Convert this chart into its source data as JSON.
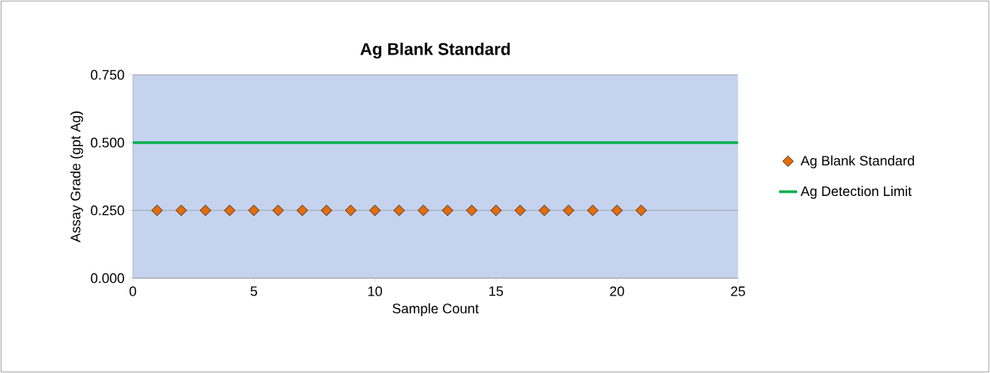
{
  "chart_data": {
    "type": "scatter",
    "title": "Ag Blank Standard",
    "xlabel": "Sample Count",
    "ylabel": "Assay Grade (gpt Ag)",
    "xlim": [
      0,
      25
    ],
    "xticks": [
      0,
      5,
      10,
      15,
      20,
      25
    ],
    "ylim": [
      0,
      0.75
    ],
    "yticks": [
      {
        "value": 0,
        "label": "0.000"
      },
      {
        "value": 0.25,
        "label": "0.250"
      },
      {
        "value": 0.5,
        "label": "0.500"
      },
      {
        "value": 0.75,
        "label": "0.750"
      }
    ],
    "grid": "y",
    "legend": "right",
    "series": [
      {
        "name": "Ag Blank Standard",
        "marker": "diamond",
        "color": "#e46c0a",
        "x": [
          1,
          2,
          3,
          4,
          5,
          6,
          7,
          8,
          9,
          10,
          11,
          12,
          13,
          14,
          15,
          16,
          17,
          18,
          19,
          20,
          21
        ],
        "values": [
          0.25,
          0.25,
          0.25,
          0.25,
          0.25,
          0.25,
          0.25,
          0.25,
          0.25,
          0.25,
          0.25,
          0.25,
          0.25,
          0.25,
          0.25,
          0.25,
          0.25,
          0.25,
          0.25,
          0.25,
          0.25
        ]
      },
      {
        "name": "Ag Detection Limit",
        "type": "line",
        "color": "#00b050",
        "x": [
          0,
          25
        ],
        "values": [
          0.5,
          0.5
        ]
      }
    ]
  }
}
